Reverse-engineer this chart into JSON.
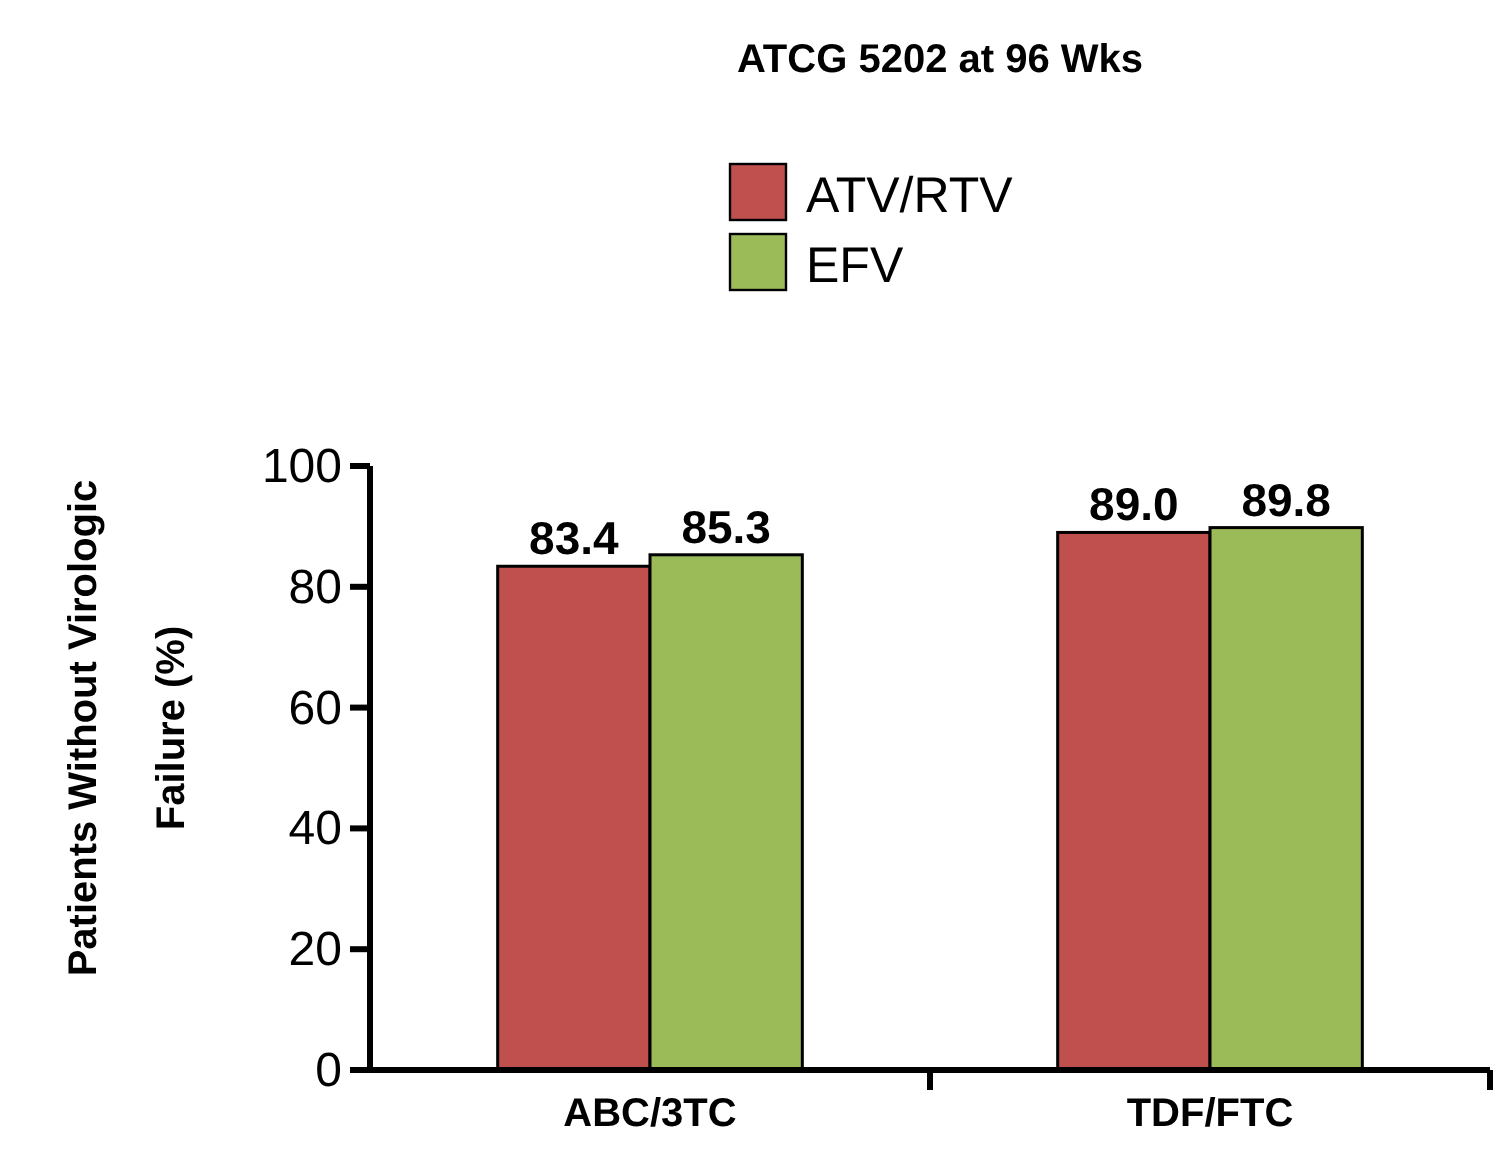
{
  "chart_data": {
    "type": "bar",
    "title": "ATCG 5202 at 96 Wks",
    "ylabel": "Patients Without Virologic Failure (%)",
    "categories": [
      "ABC/3TC",
      "TDF/FTC"
    ],
    "series": [
      {
        "name": "ATV/RTV",
        "color": "#c0504d",
        "values": [
          83.4,
          89.0
        ],
        "value_labels": [
          "83.4",
          "89.0"
        ]
      },
      {
        "name": "EFV",
        "color": "#9bbb59",
        "values": [
          85.3,
          89.8
        ],
        "value_labels": [
          "85.3",
          "89.8"
        ]
      }
    ],
    "ylim": [
      0,
      100
    ],
    "yticks": [
      0,
      20,
      40,
      60,
      80,
      100
    ],
    "grid": false,
    "legend": "top"
  }
}
